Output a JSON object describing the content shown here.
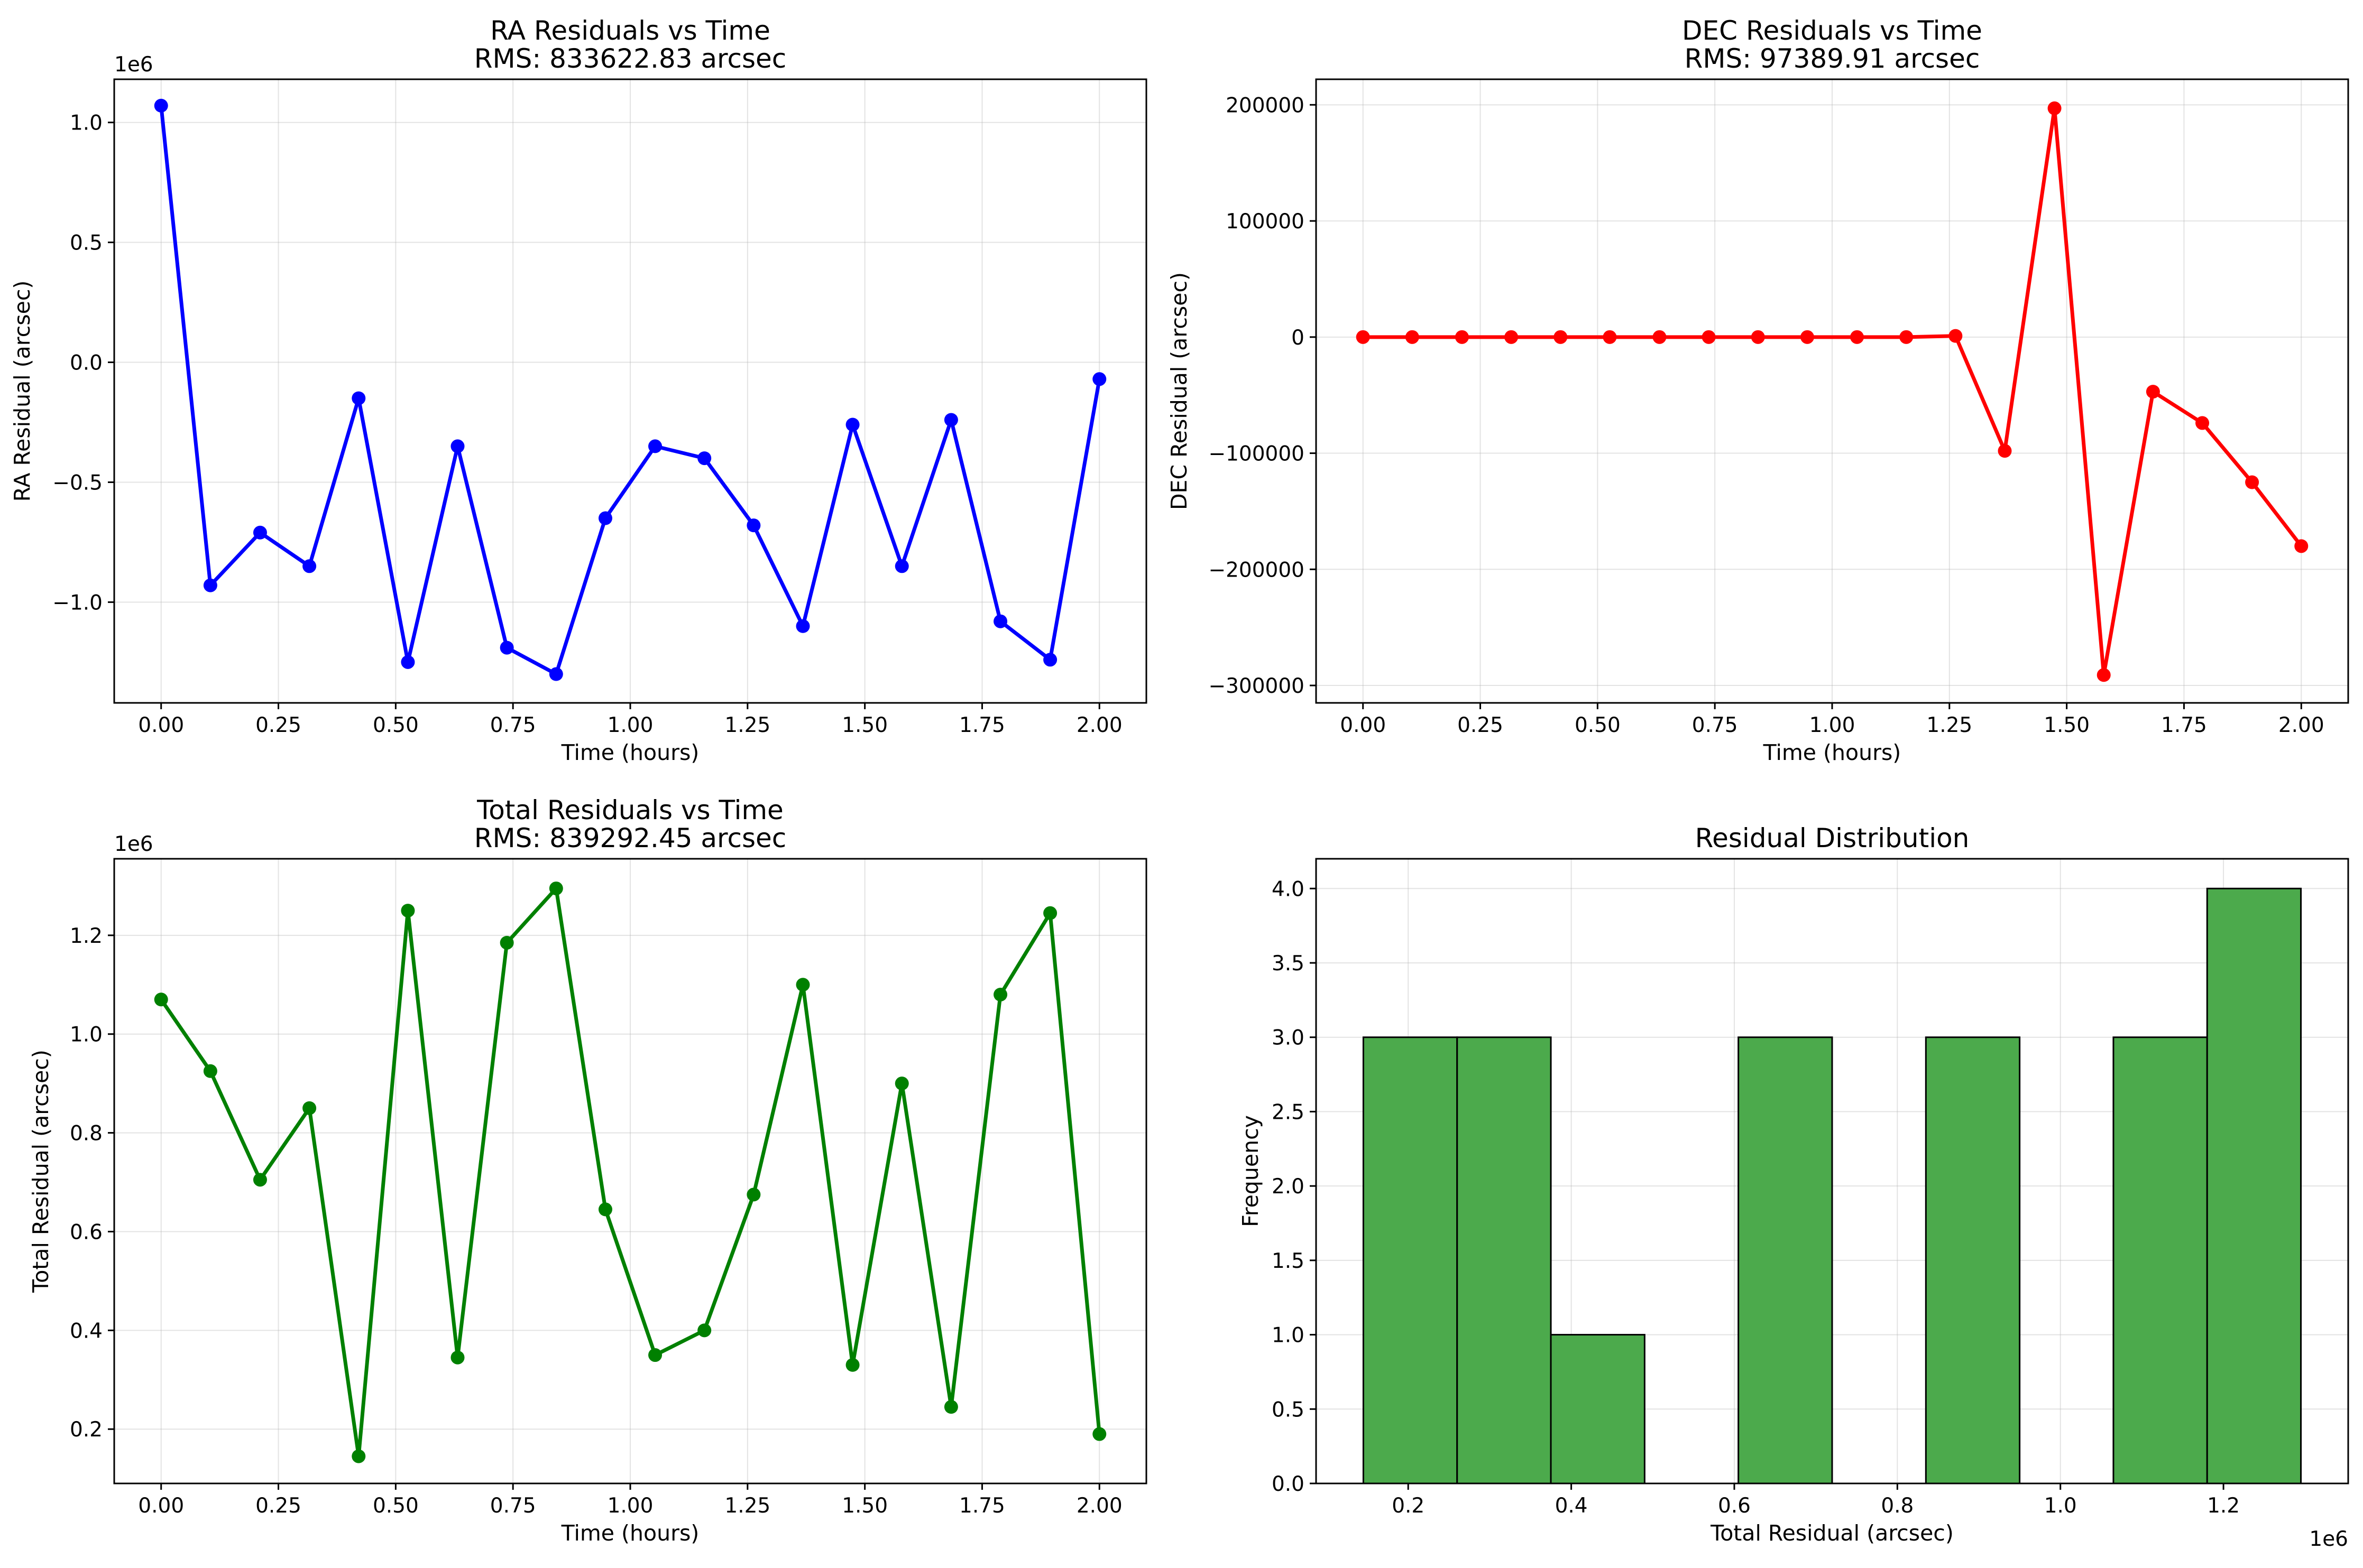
{
  "chart_data": [
    {
      "type": "line",
      "title": "RA Residuals vs Time",
      "subtitle": "RMS: 833622.83 arcsec",
      "xlabel": "Time (hours)",
      "ylabel": "RA Residual (arcsec)",
      "y_offset_label": "1e6",
      "y_scale": 1000000,
      "grid": true,
      "color": "#0000ff",
      "xlim": [
        -0.1,
        2.1
      ],
      "ylim": [
        -1.42,
        1.18
      ],
      "x_ticks": [
        0,
        0.25,
        0.5,
        0.75,
        1,
        1.25,
        1.5,
        1.75,
        2
      ],
      "x_tick_labels": [
        "0.00",
        "0.25",
        "0.50",
        "0.75",
        "1.00",
        "1.25",
        "1.50",
        "1.75",
        "2.00"
      ],
      "y_ticks": [
        -1,
        -0.5,
        0,
        0.5,
        1
      ],
      "y_tick_labels": [
        "−1.0",
        "−0.5",
        "0.0",
        "0.5",
        "1.0"
      ],
      "series": [
        {
          "x": [
            0,
            0.105,
            0.211,
            0.316,
            0.421,
            0.526,
            0.632,
            0.737,
            0.842,
            0.947,
            1.053,
            1.158,
            1.263,
            1.368,
            1.474,
            1.579,
            1.684,
            1.789,
            1.895,
            2.0
          ],
          "values": [
            1.07,
            -0.93,
            -0.71,
            -0.85,
            -0.15,
            -1.25,
            -0.35,
            -1.19,
            -1.3,
            -0.65,
            -0.35,
            -0.4,
            -0.68,
            -1.1,
            -0.26,
            -0.85,
            -0.24,
            -1.08,
            -1.24,
            -0.07
          ]
        }
      ]
    },
    {
      "type": "line",
      "title": "DEC Residuals vs Time",
      "subtitle": "RMS: 97389.91 arcsec",
      "xlabel": "Time (hours)",
      "ylabel": "DEC Residual (arcsec)",
      "grid": true,
      "color": "#ff0000",
      "xlim": [
        -0.1,
        2.1
      ],
      "ylim": [
        -315000,
        222000
      ],
      "x_ticks": [
        0,
        0.25,
        0.5,
        0.75,
        1,
        1.25,
        1.5,
        1.75,
        2
      ],
      "x_tick_labels": [
        "0.00",
        "0.25",
        "0.50",
        "0.75",
        "1.00",
        "1.25",
        "1.50",
        "1.75",
        "2.00"
      ],
      "y_ticks": [
        -300000,
        -200000,
        -100000,
        0,
        100000,
        200000
      ],
      "y_tick_labels": [
        "−300000",
        "−200000",
        "−100000",
        "0",
        "100000",
        "200000"
      ],
      "series": [
        {
          "x": [
            0,
            0.105,
            0.211,
            0.316,
            0.421,
            0.526,
            0.632,
            0.737,
            0.842,
            0.947,
            1.053,
            1.158,
            1.263,
            1.368,
            1.474,
            1.579,
            1.684,
            1.789,
            1.895,
            2.0
          ],
          "values": [
            0,
            0,
            0,
            0,
            0,
            0,
            0,
            0,
            0,
            0,
            0,
            0,
            1000,
            -98000,
            197000,
            -291000,
            -47000,
            -74000,
            -125000,
            -180000
          ]
        }
      ]
    },
    {
      "type": "line",
      "title": "Total Residuals vs Time",
      "subtitle": "RMS: 839292.45 arcsec",
      "xlabel": "Time (hours)",
      "ylabel": "Total Residual (arcsec)",
      "y_offset_label": "1e6",
      "y_scale": 1000000,
      "grid": true,
      "color": "#008000",
      "xlim": [
        -0.1,
        2.1
      ],
      "ylim": [
        0.09,
        1.355
      ],
      "x_ticks": [
        0,
        0.25,
        0.5,
        0.75,
        1,
        1.25,
        1.5,
        1.75,
        2
      ],
      "x_tick_labels": [
        "0.00",
        "0.25",
        "0.50",
        "0.75",
        "1.00",
        "1.25",
        "1.50",
        "1.75",
        "2.00"
      ],
      "y_ticks": [
        0.2,
        0.4,
        0.6,
        0.8,
        1.0,
        1.2
      ],
      "y_tick_labels": [
        "0.2",
        "0.4",
        "0.6",
        "0.8",
        "1.0",
        "1.2"
      ],
      "series": [
        {
          "x": [
            0,
            0.105,
            0.211,
            0.316,
            0.421,
            0.526,
            0.632,
            0.737,
            0.842,
            0.947,
            1.053,
            1.158,
            1.263,
            1.368,
            1.474,
            1.579,
            1.684,
            1.789,
            1.895,
            2.0
          ],
          "values": [
            1.07,
            0.925,
            0.705,
            0.85,
            0.145,
            1.25,
            0.345,
            1.185,
            1.295,
            0.645,
            0.35,
            0.4,
            0.675,
            1.1,
            0.33,
            0.9,
            0.245,
            1.08,
            1.245,
            0.19
          ]
        }
      ]
    },
    {
      "type": "bar",
      "title": "Residual Distribution",
      "xlabel": "Total Residual (arcsec)",
      "ylabel": "Frequency",
      "x_offset_label": "1e6",
      "grid": true,
      "color": "#4caa4c",
      "xlim": [
        0.087,
        1.353
      ],
      "ylim": [
        0,
        4.2
      ],
      "x_ticks": [
        0.2,
        0.4,
        0.6,
        0.8,
        1.0,
        1.2
      ],
      "x_tick_labels": [
        "0.2",
        "0.4",
        "0.6",
        "0.8",
        "1.0",
        "1.2"
      ],
      "y_ticks": [
        0,
        0.5,
        1,
        1.5,
        2,
        2.5,
        3,
        3.5,
        4
      ],
      "y_tick_labels": [
        "0.0",
        "0.5",
        "1.0",
        "1.5",
        "2.0",
        "2.5",
        "3.0",
        "3.5",
        "4.0"
      ],
      "bin_edges": [
        0.145,
        0.26,
        0.375,
        0.49,
        0.605,
        0.72,
        0.835,
        0.95,
        1.065,
        1.18,
        1.295
      ],
      "values": [
        3,
        3,
        1,
        0,
        3,
        0,
        3,
        0,
        3,
        4
      ]
    }
  ]
}
